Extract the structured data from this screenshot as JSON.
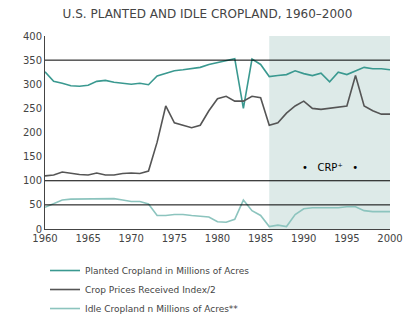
{
  "chart_data": {
    "type": "line",
    "title": "U.S. PLANTED AND IDLE CROPLAND, 1960–2000",
    "x": [
      1960,
      1961,
      1962,
      1963,
      1964,
      1965,
      1966,
      1967,
      1968,
      1969,
      1970,
      1971,
      1972,
      1973,
      1974,
      1975,
      1976,
      1977,
      1978,
      1979,
      1980,
      1981,
      1982,
      1983,
      1984,
      1985,
      1986,
      1987,
      1988,
      1989,
      1990,
      1991,
      1992,
      1993,
      1994,
      1995,
      1996,
      1997,
      1998,
      1999,
      2000
    ],
    "series": [
      {
        "name": "Planted Cropland in Millions of Acres",
        "color": "#3a9990",
        "values": [
          326,
          306,
          302,
          297,
          296,
          298,
          306,
          308,
          304,
          302,
          300,
          302,
          299,
          317,
          322,
          328,
          330,
          333,
          335,
          341,
          345,
          350,
          353,
          250,
          352,
          341,
          316,
          318,
          320,
          328,
          322,
          318,
          323,
          305,
          325,
          320,
          327,
          335,
          332,
          332,
          330
        ]
      },
      {
        "name": "Crop Prices Received Index/2",
        "color": "#555555",
        "values": [
          110,
          112,
          118,
          115,
          113,
          112,
          116,
          112,
          112,
          115,
          116,
          115,
          120,
          180,
          255,
          220,
          215,
          210,
          215,
          245,
          270,
          275,
          265,
          265,
          275,
          272,
          215,
          220,
          240,
          255,
          265,
          250,
          248,
          250,
          252,
          255,
          318,
          255,
          245,
          238,
          238
        ]
      },
      {
        "name": "Idle Cropland n Millions of Acres**",
        "color": "#8cc4be",
        "values": [
          45,
          52,
          60,
          62,
          62,
          62,
          62,
          62,
          63,
          60,
          57,
          57,
          52,
          28,
          28,
          30,
          30,
          28,
          27,
          25,
          15,
          14,
          20,
          60,
          38,
          28,
          5,
          8,
          5,
          30,
          42,
          44,
          44,
          44,
          44,
          46,
          46,
          38,
          36,
          36,
          36
        ]
      }
    ],
    "xlim": [
      1960,
      2000
    ],
    "ylim": [
      0,
      400
    ],
    "xticks": [
      1960,
      1965,
      1970,
      1975,
      1980,
      1985,
      1990,
      1995,
      2000
    ],
    "yticks": [
      0,
      50,
      100,
      150,
      200,
      250,
      300,
      350,
      400
    ],
    "hlines": [
      50,
      100,
      350
    ],
    "shaded_region": {
      "x0": 1986,
      "x1": 2000,
      "color": "#ddeae8"
    },
    "annotations": [
      {
        "text": "•   CRP⁺   •",
        "x": 1993,
        "y": 127
      }
    ],
    "grid": false,
    "legend": "bottom"
  }
}
